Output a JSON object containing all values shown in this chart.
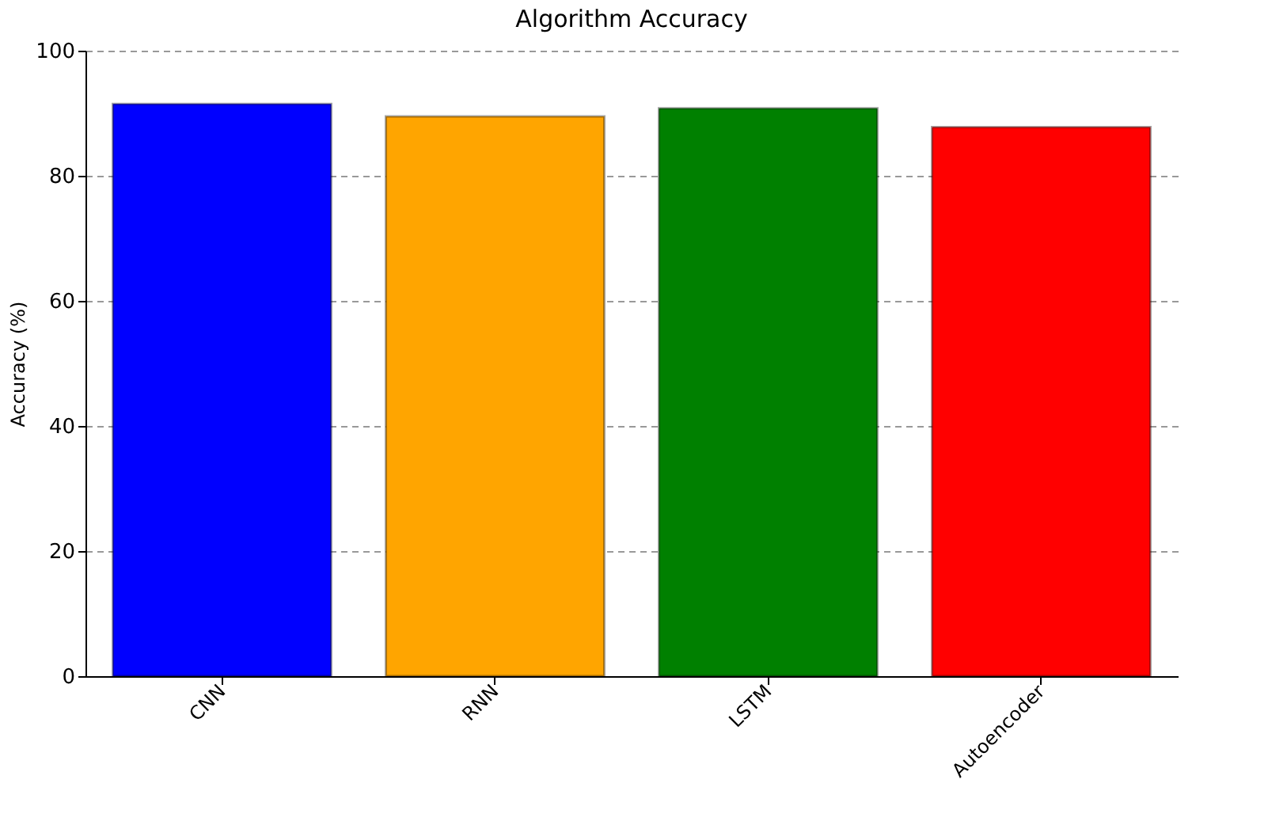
{
  "chart_data": {
    "type": "bar",
    "title": "Algorithm Accuracy",
    "ylabel": "Accuracy (%)",
    "categories": [
      "CNN",
      "RNN",
      "LSTM",
      "Autoencoder"
    ],
    "values": [
      91.5,
      89.5,
      90.8,
      87.8
    ],
    "colors": [
      "#0000ff",
      "#ffa500",
      "#008000",
      "#ff0000"
    ],
    "ylim": [
      0,
      100
    ],
    "yticks": [
      0,
      20,
      40,
      60,
      80,
      100
    ],
    "grid": "y"
  }
}
